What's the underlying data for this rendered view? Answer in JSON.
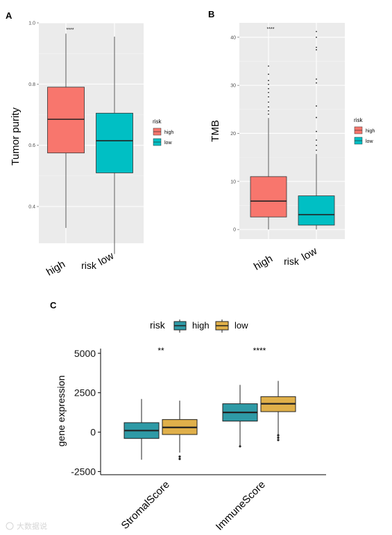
{
  "chart_data": [
    {
      "panel": "A",
      "type": "box",
      "ylabel": "Tumor purity",
      "xlabel": "risk",
      "categories": [
        "high",
        "low"
      ],
      "yticks": [
        0.4,
        0.6,
        0.8,
        1.0
      ],
      "ytick_labels": [
        "0.4",
        "0.6",
        "0.8",
        "1.0"
      ],
      "ylim": [
        0.28,
        1.0
      ],
      "boxes": [
        {
          "name": "high",
          "whisker_low": 0.33,
          "q1": 0.575,
          "median": 0.685,
          "q3": 0.79,
          "whisker_high": 0.965,
          "outliers": []
        },
        {
          "name": "low",
          "whisker_low": 0.245,
          "q1": 0.51,
          "median": 0.615,
          "q3": 0.705,
          "whisker_high": 0.955,
          "outliers": []
        }
      ],
      "significance": "****",
      "legend": {
        "title": "risk",
        "entries": [
          "high",
          "low"
        ],
        "placement": "right"
      },
      "colors": {
        "high": "#F8766D",
        "low": "#00BFC4"
      }
    },
    {
      "panel": "B",
      "type": "box",
      "ylabel": "TMB",
      "xlabel": "risk",
      "categories": [
        "high",
        "low"
      ],
      "yticks": [
        0,
        10,
        20,
        30,
        40
      ],
      "ytick_labels": [
        "0",
        "10",
        "20",
        "30",
        "40"
      ],
      "ylim": [
        -2,
        43
      ],
      "boxes": [
        {
          "name": "high",
          "whisker_low": 0,
          "q1": 2.6,
          "median": 5.9,
          "q3": 11,
          "whisker_high": 23.2,
          "outliers": [
            24,
            24.7,
            25.5,
            26.5,
            27.6,
            28.5,
            29.3,
            30.2,
            31.0,
            32.3,
            34.0
          ]
        },
        {
          "name": "low",
          "whisker_low": 0,
          "q1": 0.9,
          "median": 3.1,
          "q3": 7.0,
          "whisker_high": 15.7,
          "outliers": [
            16.5,
            17.5,
            18.6,
            20.4,
            23.3,
            25.7,
            30.5,
            31.3,
            37.4,
            37.9,
            40.0,
            41.2
          ]
        }
      ],
      "significance": "****",
      "legend": {
        "title": "risk",
        "entries": [
          "high",
          "low"
        ],
        "placement": "right"
      },
      "colors": {
        "high": "#F8766D",
        "low": "#00BFC4"
      }
    },
    {
      "panel": "C",
      "type": "box",
      "ylabel": "gene expression",
      "xlabel": "",
      "categories": [
        "StromalScore",
        "ImmuneScore"
      ],
      "yticks": [
        -2500,
        0,
        2500,
        5000
      ],
      "ytick_labels": [
        "-2500",
        "0",
        "2500",
        "5000"
      ],
      "ylim": [
        -2700,
        5300
      ],
      "legend": {
        "title": "risk",
        "entries": [
          "high",
          "low"
        ],
        "placement": "top"
      },
      "colors": {
        "high": "#2E9AA6",
        "low": "#E0B04A"
      },
      "series": [
        {
          "name": "high",
          "boxes": [
            {
              "category": "StromalScore",
              "whisker_low": -1750,
              "q1": -400,
              "median": 100,
              "q3": 600,
              "whisker_high": 2100,
              "outliers": []
            },
            {
              "category": "ImmuneScore",
              "whisker_low": -900,
              "q1": 700,
              "median": 1250,
              "q3": 1800,
              "whisker_high": 3000,
              "outliers": [
                -900
              ]
            }
          ]
        },
        {
          "name": "low",
          "boxes": [
            {
              "category": "StromalScore",
              "whisker_low": -1300,
              "q1": -150,
              "median": 300,
              "q3": 800,
              "whisker_high": 2000,
              "outliers": [
                -1550,
                -1700
              ]
            },
            {
              "category": "ImmuneScore",
              "whisker_low": -200,
              "q1": 1300,
              "median": 1800,
              "q3": 2250,
              "whisker_high": 3250,
              "outliers": [
                -200,
                -350,
                -500
              ]
            }
          ]
        }
      ],
      "significance": [
        "**",
        "****"
      ]
    }
  ],
  "panel_labels": [
    "A",
    "B",
    "C"
  ],
  "watermark": "大数据说"
}
